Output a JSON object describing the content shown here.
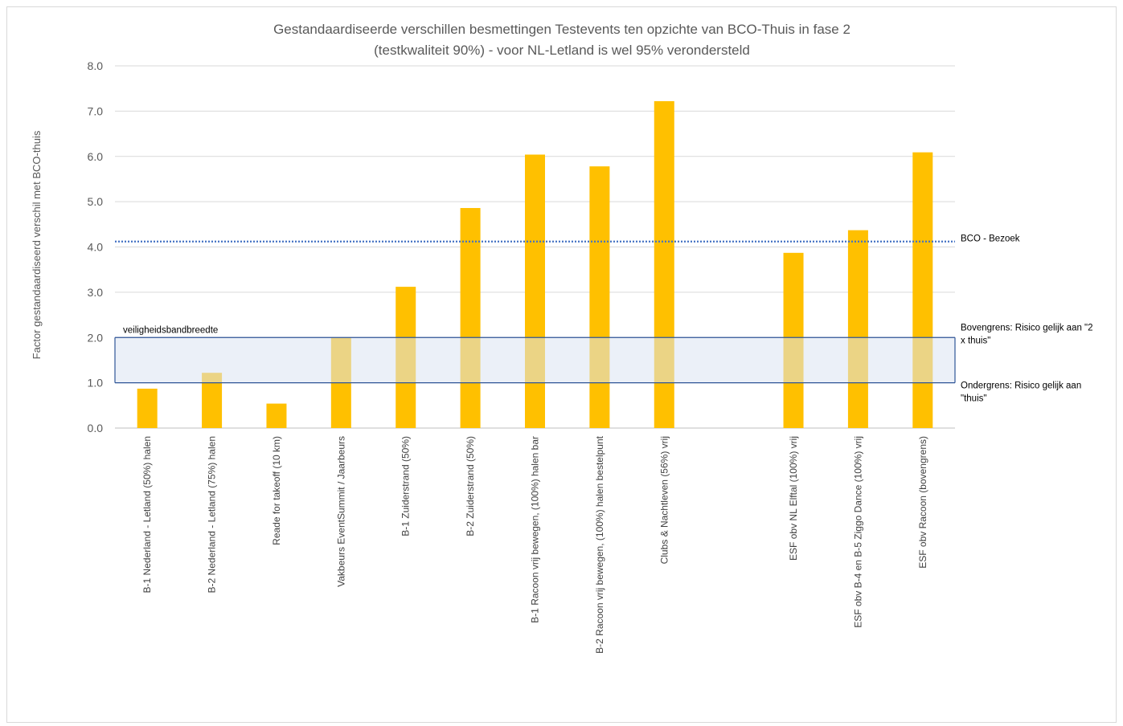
{
  "chart_data": {
    "type": "bar",
    "title_lines": [
      "Gestandaardiseerde verschillen besmettingen Testevents ten opzichte van BCO-Thuis in fase 2",
      "(testkwaliteit 90%) - voor NL-Letland is wel 95% verondersteld"
    ],
    "ylabel": "Factor gestandaardiseerd verschil met BCO-thuis",
    "ylim": [
      0,
      8
    ],
    "ytick_labels": [
      "0.0",
      "1.0",
      "2.0",
      "3.0",
      "4.0",
      "5.0",
      "6.0",
      "7.0",
      "8.0"
    ],
    "grid": true,
    "categories": [
      "B-1 Nederland - Letland (50%) halen",
      "B-2 Nederland - Letland (75%) halen",
      "Reade for takeoff (10 km)",
      "Vakbeurs EventSummit / Jaarbeurs",
      "B-1 Zuiderstrand (50%)",
      "B-2 Zuiderstrand (50%)",
      "B-1 Racoon vrij bewegen, (100%) halen bar",
      "B-2 Racoon vrij bewegen, (100%) halen bestelpunt",
      "Clubs & Nachtleven (56%) vrij",
      "",
      "ESF obv NL Elftal (100%) vrij",
      "ESF obv B-4 en B-5 Ziggo Dance (100%) vrij",
      "ESF obv Racoon (bovengrens)"
    ],
    "values": [
      0.87,
      1.22,
      0.54,
      2.0,
      3.12,
      4.86,
      6.04,
      5.78,
      7.22,
      null,
      3.87,
      4.37,
      6.09
    ],
    "bar_color": "#FFC000",
    "reference_line": {
      "label": "BCO - Bezoek",
      "value": 4.12,
      "color": "#4472C4",
      "style": "dotted"
    },
    "band": {
      "label": "veiligheidsbandbreedte",
      "lower": 1.0,
      "upper": 2.0,
      "fill_color": "#DAE3F3",
      "line_color": "#2F5597",
      "upper_label_lines": [
        "Bovengrens: Risico gelijk aan \"2",
        "x thuis\""
      ],
      "lower_label_lines": [
        "Ondergrens: Risico gelijk aan",
        "\"thuis\""
      ]
    }
  }
}
